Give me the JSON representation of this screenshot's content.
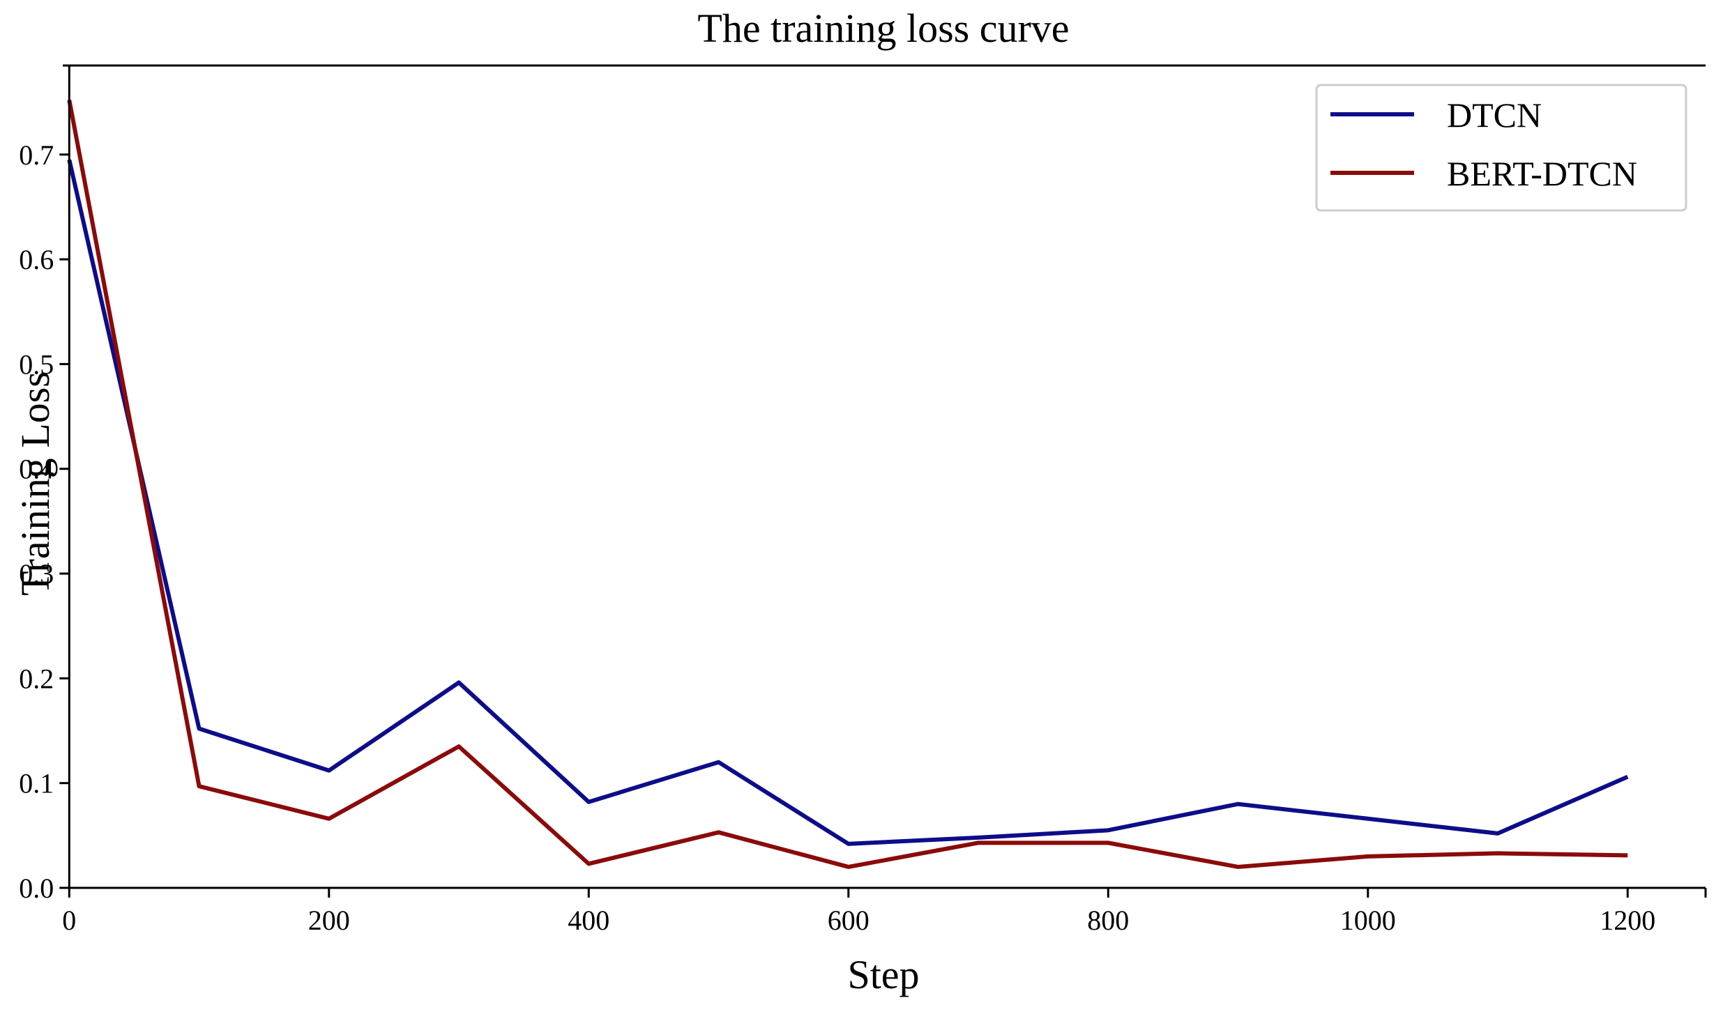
{
  "chart_data": {
    "type": "line",
    "title": "The training loss curve",
    "xlabel": "Step",
    "ylabel": "Training Loss",
    "xlim": [
      -5,
      1260
    ],
    "ylim": [
      0.0,
      0.785
    ],
    "x_ticks": [
      0,
      200,
      400,
      600,
      800,
      1000,
      1200
    ],
    "x_tick_labels": [
      "0",
      "200",
      "400",
      "600",
      "800",
      "1000",
      "1200"
    ],
    "y_ticks": [
      0.0,
      0.1,
      0.2,
      0.3,
      0.4,
      0.5,
      0.6,
      0.7
    ],
    "y_tick_labels": [
      "0.0",
      "0.1",
      "0.2",
      "0.3",
      "0.4",
      "0.5",
      "0.6",
      "0.7"
    ],
    "grid": false,
    "legend_position": "top-right",
    "x": [
      0,
      100,
      200,
      300,
      400,
      500,
      600,
      700,
      800,
      900,
      1000,
      1100,
      1200
    ],
    "series": [
      {
        "name": "DTCN",
        "color": "#0d0d8a",
        "values": [
          0.695,
          0.152,
          0.112,
          0.196,
          0.082,
          0.12,
          0.042,
          0.048,
          0.055,
          0.08,
          0.066,
          0.052,
          0.106
        ]
      },
      {
        "name": "BERT-DTCN",
        "color": "#8b0a0a",
        "values": [
          0.752,
          0.097,
          0.066,
          0.135,
          0.023,
          0.053,
          0.02,
          0.043,
          0.043,
          0.02,
          0.03,
          0.033,
          0.031
        ]
      }
    ]
  }
}
